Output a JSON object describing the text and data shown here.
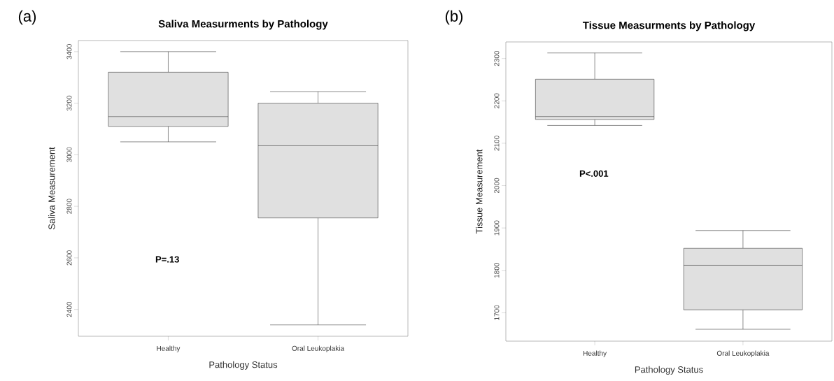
{
  "chart_data": [
    {
      "type": "box",
      "title": "Saliva Measurments by Pathology",
      "xlabel": "Pathology Status",
      "ylabel": "Saliva Measurement",
      "categories": [
        "Healthy",
        "Oral Leukoplakia"
      ],
      "series": [
        {
          "color": "#e0e0e0",
          "boxes": [
            {
              "low": 3050,
              "q1": 3110,
              "median": 3148,
              "q3": 3320,
              "high": 3400
            },
            {
              "low": 2340,
              "q1": 2755,
              "median": 3035,
              "q3": 3200,
              "high": 3245
            }
          ]
        }
      ],
      "ylim": [
        2296,
        3443
      ],
      "yticks": [
        2400,
        2600,
        2800,
        3000,
        3200,
        3400
      ],
      "annotations": [
        "(a)",
        "P=.13"
      ]
    },
    {
      "type": "box",
      "title": "Tissue Measurments by Pathology",
      "xlabel": "Pathology Status",
      "ylabel": "Tissue Measurement",
      "categories": [
        "Healthy",
        "Oral Leukoplakia"
      ],
      "series": [
        {
          "color": "#e0e0e0",
          "boxes": [
            {
              "low": 2142,
              "q1": 2156,
              "median": 2163,
              "q3": 2251,
              "high": 2313
            },
            {
              "low": 1661,
              "q1": 1707,
              "median": 1812,
              "q3": 1852,
              "high": 1894
            }
          ]
        }
      ],
      "ylim": [
        1633,
        2339
      ],
      "yticks": [
        1700,
        1800,
        1900,
        2000,
        2100,
        2200,
        2300
      ],
      "annotations": [
        "(b)",
        "P<.001"
      ]
    }
  ]
}
